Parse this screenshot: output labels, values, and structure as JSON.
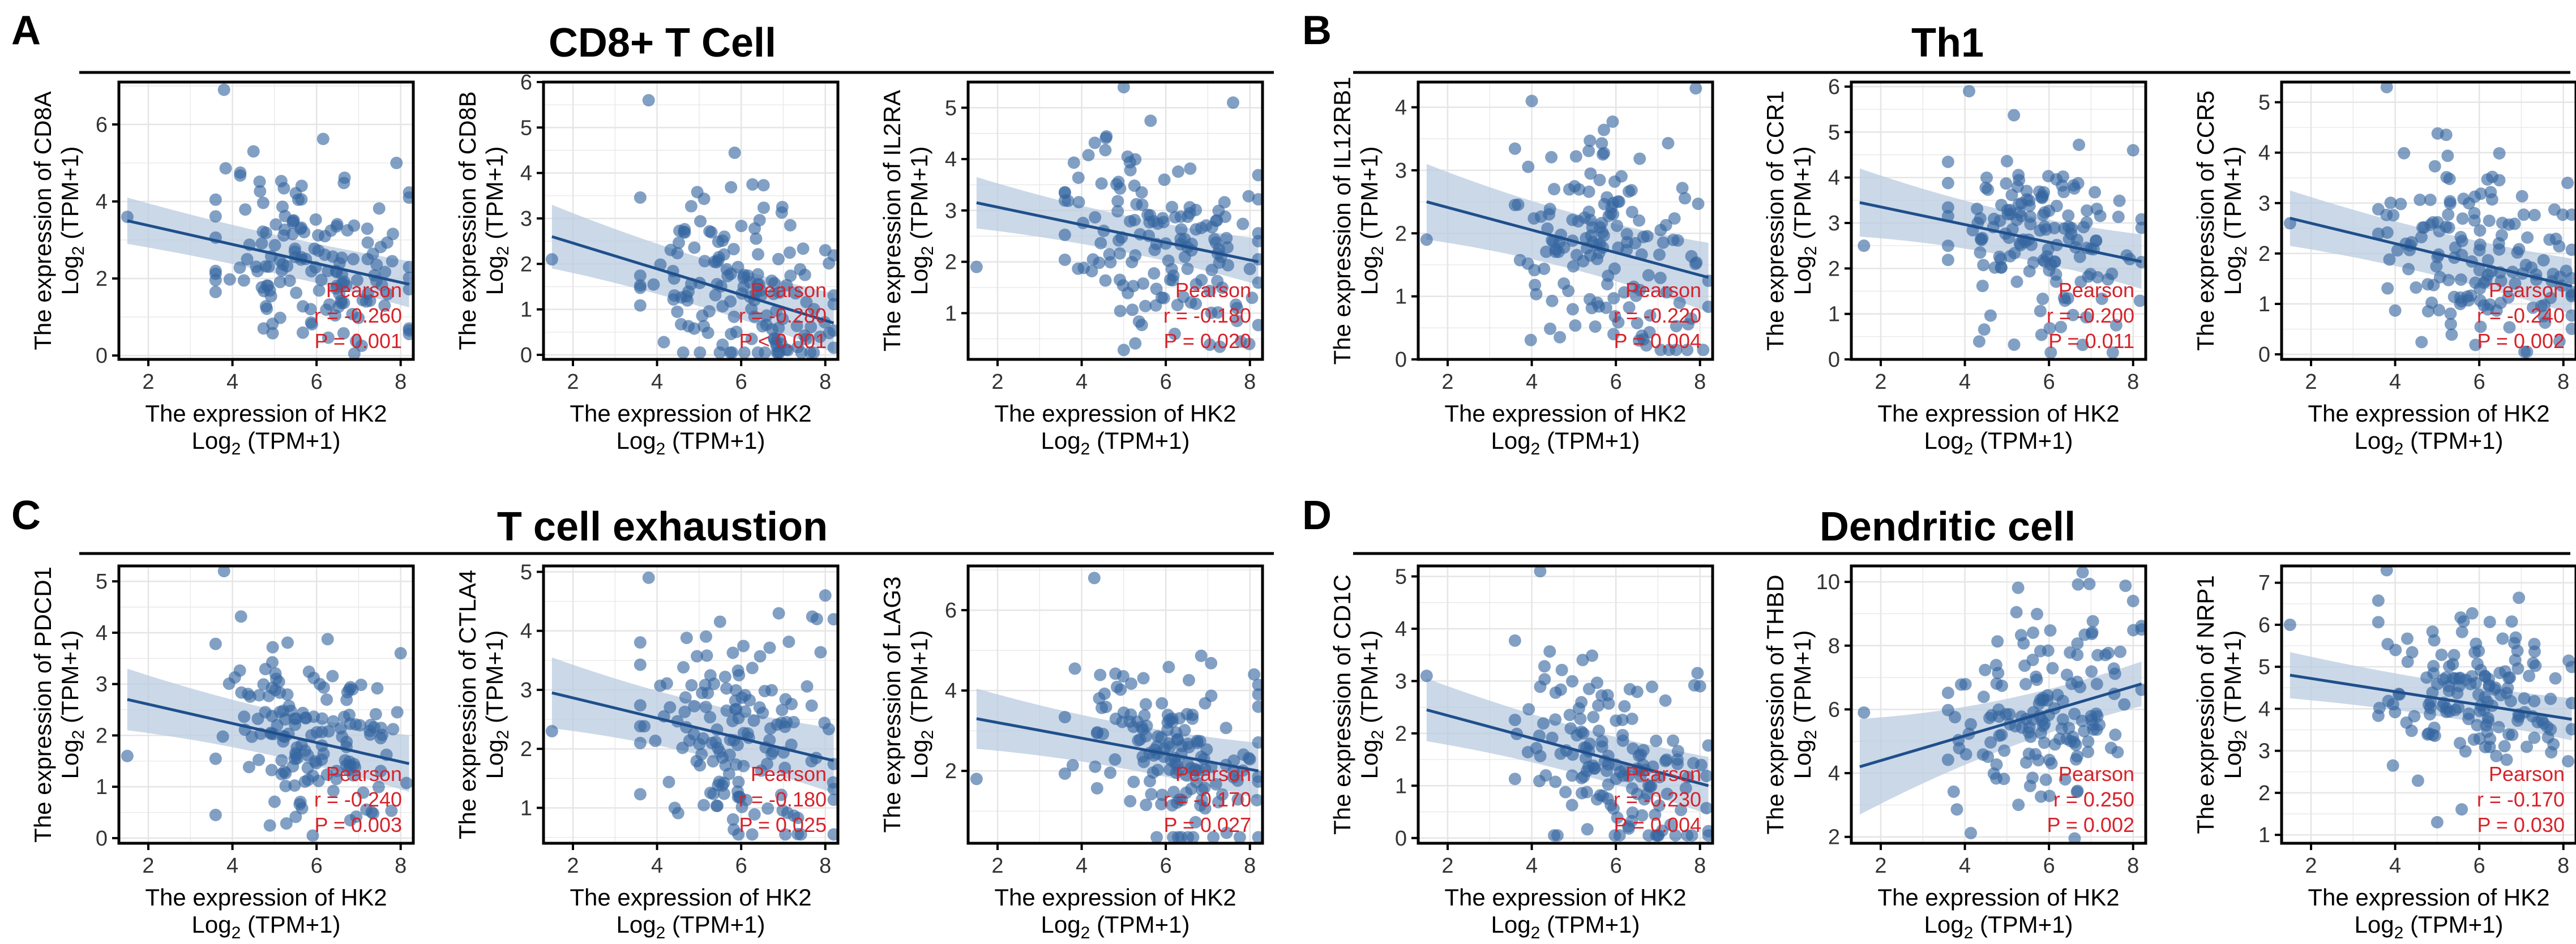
{
  "colors": {
    "point": "#3565a0",
    "line": "#1f4f8b",
    "band": "#b9cbe0",
    "stat": "#d6232b",
    "grid": "#e5e5e5"
  },
  "common": {
    "xlabel_main": "The expression of HK2",
    "unit_prefix": "Log",
    "unit_sub": "2",
    "unit_suffix": " (TPM+1)",
    "ylabel_prefix": "The expression of ",
    "stat_method": "Pearson"
  },
  "panels": [
    {
      "letter": "A",
      "title": "CD8+ T Cell"
    },
    {
      "letter": "B",
      "title": "Th1"
    },
    {
      "letter": "C",
      "title": "T cell exhaustion"
    },
    {
      "letter": "D",
      "title": "Dendritic cell"
    }
  ],
  "chart_data": [
    {
      "type": "scatter",
      "panel": "A",
      "gene": "CD8A",
      "xlim": [
        1.3,
        8.3
      ],
      "ylim": [
        -0.1,
        7.1
      ],
      "xticks": [
        2,
        4,
        6,
        8
      ],
      "yticks": [
        0,
        2,
        4,
        6
      ],
      "fit": {
        "x": [
          1.5,
          8.2
        ],
        "y": [
          3.5,
          1.85
        ]
      },
      "band": [
        0.6,
        0.25,
        0.6
      ],
      "r": "r = -0.260",
      "p": "P = 0.001",
      "n": 150,
      "seed": 11,
      "x_mean": 5.9,
      "x_sd": 1.2,
      "resid_sd": 1.2,
      "outliers": [
        [
          3.8,
          6.9
        ],
        [
          1.5,
          3.6
        ],
        [
          4.5,
          5.3
        ],
        [
          7.9,
          5.0
        ],
        [
          8.2,
          4.1
        ]
      ]
    },
    {
      "type": "scatter",
      "panel": "A",
      "gene": "CD8B",
      "xlim": [
        1.3,
        8.3
      ],
      "ylim": [
        -0.1,
        6.0
      ],
      "xticks": [
        2,
        4,
        6,
        8
      ],
      "yticks": [
        0,
        1,
        2,
        3,
        4,
        5,
        6
      ],
      "fit": {
        "x": [
          1.5,
          8.2
        ],
        "y": [
          2.6,
          0.7
        ]
      },
      "band": [
        0.7,
        0.25,
        0.65
      ],
      "r": "r = -0.280",
      "p": "P < 0.001",
      "n": 150,
      "seed": 23,
      "x_mean": 5.9,
      "x_sd": 1.2,
      "resid_sd": 1.0,
      "outliers": [
        [
          3.8,
          5.6
        ],
        [
          1.5,
          2.1
        ],
        [
          8.0,
          2.3
        ]
      ]
    },
    {
      "type": "scatter",
      "panel": "A",
      "gene": "IL2RA",
      "xlim": [
        1.3,
        8.3
      ],
      "ylim": [
        0.1,
        5.5
      ],
      "xticks": [
        2,
        4,
        6,
        8
      ],
      "yticks": [
        1,
        2,
        3,
        4,
        5
      ],
      "fit": {
        "x": [
          1.5,
          8.2
        ],
        "y": [
          3.15,
          2.0
        ]
      },
      "band": [
        0.5,
        0.15,
        0.45
      ],
      "r": "r = -0.180",
      "p": "P = 0.020",
      "n": 150,
      "seed": 37,
      "x_mean": 5.9,
      "x_sd": 1.2,
      "resid_sd": 0.95,
      "outliers": [
        [
          5.0,
          5.4
        ],
        [
          1.5,
          1.9
        ],
        [
          7.6,
          5.1
        ]
      ]
    },
    {
      "type": "scatter",
      "panel": "B",
      "gene": "IL12RB1",
      "xlim": [
        1.3,
        8.3
      ],
      "ylim": [
        0,
        4.4
      ],
      "xticks": [
        2,
        4,
        6,
        8
      ],
      "yticks": [
        0,
        1,
        2,
        3,
        4
      ],
      "fit": {
        "x": [
          1.5,
          8.2
        ],
        "y": [
          2.5,
          1.3
        ]
      },
      "band": [
        0.6,
        0.2,
        0.55
      ],
      "r": "r = -0.220",
      "p": "P = 0.004",
      "n": 150,
      "seed": 41,
      "x_mean": 5.9,
      "x_sd": 1.2,
      "resid_sd": 0.85,
      "outliers": [
        [
          7.9,
          4.3
        ],
        [
          4.0,
          4.1
        ],
        [
          1.5,
          1.9
        ]
      ]
    },
    {
      "type": "scatter",
      "panel": "B",
      "gene": "CCR1",
      "xlim": [
        1.3,
        8.3
      ],
      "ylim": [
        0,
        6.1
      ],
      "xticks": [
        2,
        4,
        6,
        8
      ],
      "yticks": [
        0,
        1,
        2,
        3,
        4,
        5,
        6
      ],
      "fit": {
        "x": [
          1.5,
          8.2
        ],
        "y": [
          3.45,
          2.15
        ]
      },
      "band": [
        0.75,
        0.2,
        0.6
      ],
      "r": "r = -0.200",
      "p": "P = 0.011",
      "n": 150,
      "seed": 53,
      "x_mean": 5.9,
      "x_sd": 1.2,
      "resid_sd": 1.05,
      "outliers": [
        [
          4.1,
          5.9
        ],
        [
          1.6,
          2.5
        ],
        [
          8.0,
          4.6
        ]
      ]
    },
    {
      "type": "scatter",
      "panel": "B",
      "gene": "CCR5",
      "xlim": [
        1.3,
        8.3
      ],
      "ylim": [
        -0.1,
        5.4
      ],
      "xticks": [
        2,
        4,
        6,
        8
      ],
      "yticks": [
        0,
        1,
        2,
        3,
        4,
        5
      ],
      "fit": {
        "x": [
          1.5,
          8.2
        ],
        "y": [
          2.7,
          1.35
        ]
      },
      "band": [
        0.55,
        0.2,
        0.55
      ],
      "r": "r = -0.240",
      "p": "P = 0.002",
      "n": 150,
      "seed": 67,
      "x_mean": 5.9,
      "x_sd": 1.2,
      "resid_sd": 0.9,
      "outliers": [
        [
          3.8,
          5.3
        ],
        [
          1.5,
          2.6
        ],
        [
          8.1,
          3.4
        ]
      ]
    },
    {
      "type": "scatter",
      "panel": "C",
      "gene": "PDCD1",
      "xlim": [
        1.3,
        8.3
      ],
      "ylim": [
        -0.1,
        5.3
      ],
      "xticks": [
        2,
        4,
        6,
        8
      ],
      "yticks": [
        0,
        1,
        2,
        3,
        4,
        5
      ],
      "fit": {
        "x": [
          1.5,
          8.2
        ],
        "y": [
          2.7,
          1.45
        ]
      },
      "band": [
        0.6,
        0.2,
        0.55
      ],
      "r": "r = -0.240",
      "p": "P = 0.003",
      "n": 150,
      "seed": 71,
      "x_mean": 5.9,
      "x_sd": 1.2,
      "resid_sd": 0.9,
      "outliers": [
        [
          3.8,
          5.2
        ],
        [
          1.5,
          1.6
        ],
        [
          8.0,
          3.6
        ]
      ]
    },
    {
      "type": "scatter",
      "panel": "C",
      "gene": "CTLA4",
      "xlim": [
        1.3,
        8.3
      ],
      "ylim": [
        0.4,
        5.1
      ],
      "xticks": [
        2,
        4,
        6,
        8
      ],
      "yticks": [
        1,
        2,
        3,
        4,
        5
      ],
      "fit": {
        "x": [
          1.5,
          8.2
        ],
        "y": [
          2.95,
          1.8
        ]
      },
      "band": [
        0.6,
        0.2,
        0.55
      ],
      "r": "r = -0.180",
      "p": "P = 0.025",
      "n": 150,
      "seed": 83,
      "x_mean": 5.9,
      "x_sd": 1.2,
      "resid_sd": 0.95,
      "outliers": [
        [
          3.8,
          4.9
        ],
        [
          1.5,
          2.3
        ],
        [
          8.0,
          4.6
        ],
        [
          7.8,
          4.2
        ]
      ]
    },
    {
      "type": "scatter",
      "panel": "C",
      "gene": "LAG3",
      "xlim": [
        1.3,
        8.3
      ],
      "ylim": [
        0.2,
        7.1
      ],
      "xticks": [
        2,
        4,
        6,
        8
      ],
      "yticks": [
        2,
        4,
        6
      ],
      "fit": {
        "x": [
          1.5,
          8.2
        ],
        "y": [
          3.3,
          2.0
        ]
      },
      "band": [
        0.75,
        0.25,
        0.7
      ],
      "r": "r = -0.170",
      "p": "P = 0.027",
      "n": 150,
      "seed": 97,
      "x_mean": 5.9,
      "x_sd": 1.2,
      "resid_sd": 1.2,
      "outliers": [
        [
          4.3,
          6.8
        ],
        [
          1.5,
          1.8
        ],
        [
          8.1,
          4.4
        ]
      ]
    },
    {
      "type": "scatter",
      "panel": "D",
      "gene": "CD1C",
      "xlim": [
        1.3,
        8.3
      ],
      "ylim": [
        -0.1,
        5.2
      ],
      "xticks": [
        2,
        4,
        6,
        8
      ],
      "yticks": [
        0,
        1,
        2,
        3,
        4,
        5
      ],
      "fit": {
        "x": [
          1.5,
          8.2
        ],
        "y": [
          2.45,
          1.0
        ]
      },
      "band": [
        0.6,
        0.2,
        0.55
      ],
      "r": "r = -0.230",
      "p": "P = 0.004",
      "n": 150,
      "seed": 101,
      "x_mean": 5.9,
      "x_sd": 1.2,
      "resid_sd": 0.9,
      "outliers": [
        [
          4.2,
          5.1
        ],
        [
          1.5,
          3.1
        ],
        [
          8.0,
          2.9
        ]
      ]
    },
    {
      "type": "scatter",
      "panel": "D",
      "gene": "THBD",
      "xlim": [
        1.3,
        8.3
      ],
      "ylim": [
        1.8,
        10.5
      ],
      "xticks": [
        2,
        4,
        6,
        8
      ],
      "yticks": [
        2,
        4,
        6,
        8,
        10
      ],
      "fit": {
        "x": [
          1.5,
          8.2
        ],
        "y": [
          4.2,
          6.8
        ]
      },
      "band": [
        1.5,
        0.3,
        0.7
      ],
      "r": "r = 0.250",
      "p": "P = 0.002",
      "n": 150,
      "seed": 113,
      "x_mean": 5.9,
      "x_sd": 1.2,
      "resid_sd": 1.5,
      "outliers": [
        [
          6.8,
          10.3
        ],
        [
          1.6,
          5.9
        ],
        [
          8.0,
          9.4
        ]
      ]
    },
    {
      "type": "scatter",
      "panel": "D",
      "gene": "NRP1",
      "xlim": [
        1.3,
        8.3
      ],
      "ylim": [
        0.8,
        7.4
      ],
      "xticks": [
        2,
        4,
        6,
        8
      ],
      "yticks": [
        1,
        2,
        3,
        4,
        5,
        6,
        7
      ],
      "fit": {
        "x": [
          1.5,
          8.2
        ],
        "y": [
          4.8,
          3.75
        ]
      },
      "band": [
        0.55,
        0.2,
        0.5
      ],
      "r": "r = -0.170",
      "p": "P = 0.030",
      "n": 150,
      "seed": 127,
      "x_mean": 5.9,
      "x_sd": 1.2,
      "resid_sd": 0.95,
      "outliers": [
        [
          3.8,
          7.3
        ],
        [
          1.5,
          6.0
        ],
        [
          5.0,
          1.3
        ]
      ]
    }
  ]
}
